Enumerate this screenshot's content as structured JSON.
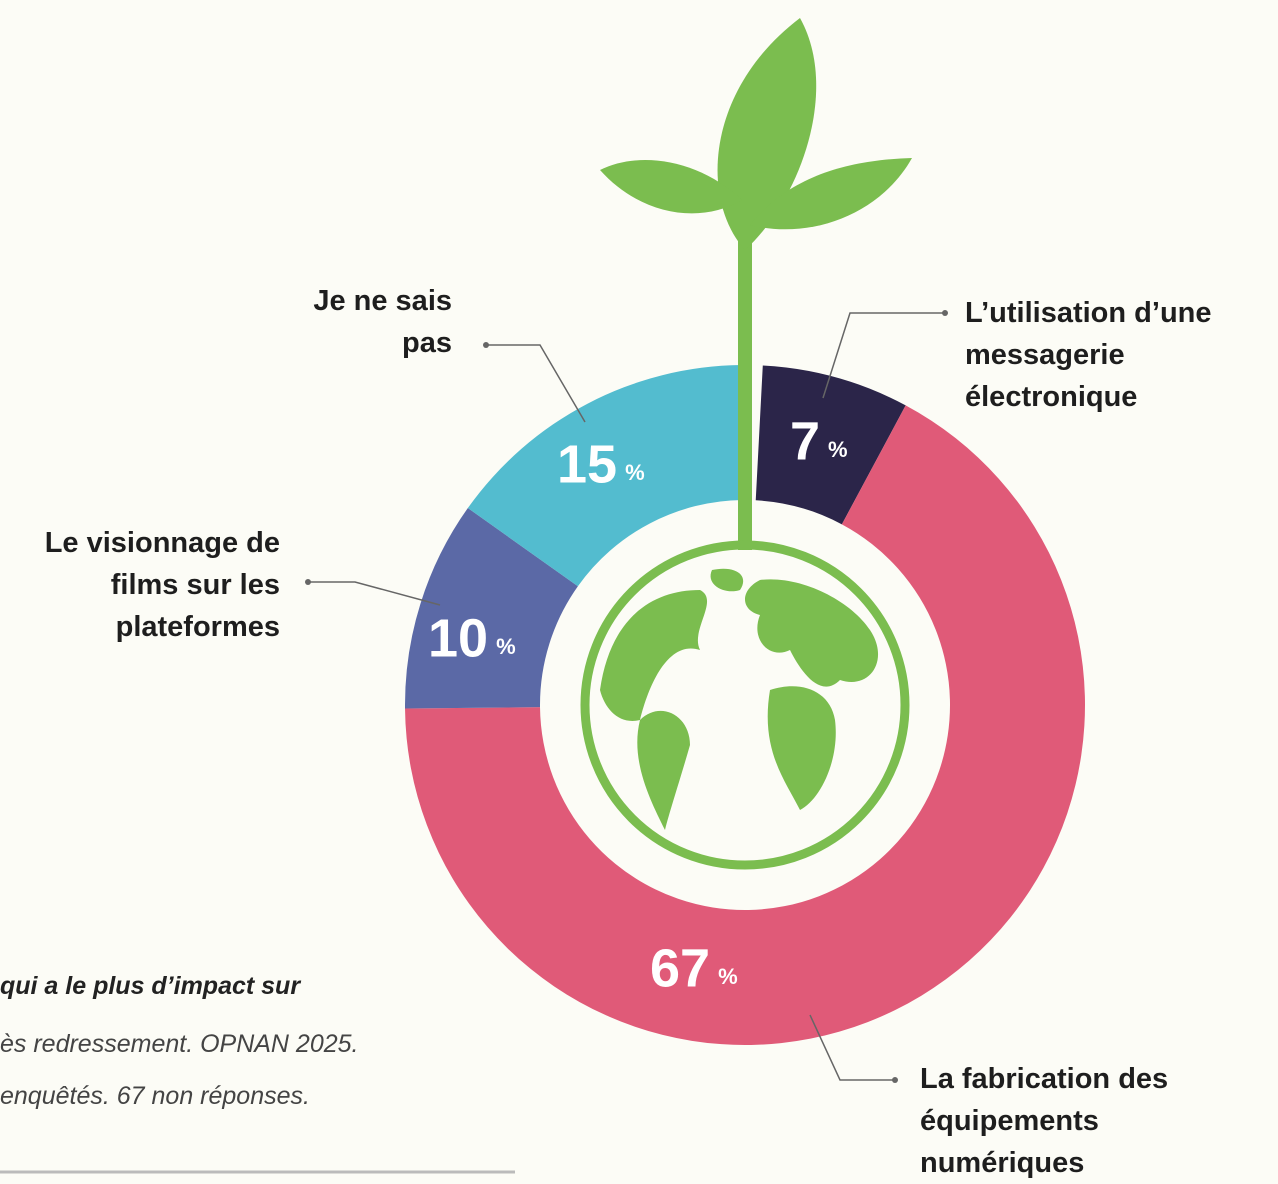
{
  "chart_data": {
    "type": "donut",
    "categories": [
      "L’utilisation d’une messagerie électronique",
      "La fabrication des équipements numériques",
      "Le visionnage de films sur les plateformes",
      "Je ne sais pas"
    ],
    "values": [
      7,
      67,
      10,
      15
    ],
    "value_unit": "%",
    "colors": [
      "#2b2549",
      "#e05a78",
      "#5b69a6",
      "#53bccf"
    ],
    "notes": [
      "qui a le plus d’impact sur",
      "ès redressement. OPNAN 2025.",
      "enquêtés. 67 non réponses."
    ]
  }
}
